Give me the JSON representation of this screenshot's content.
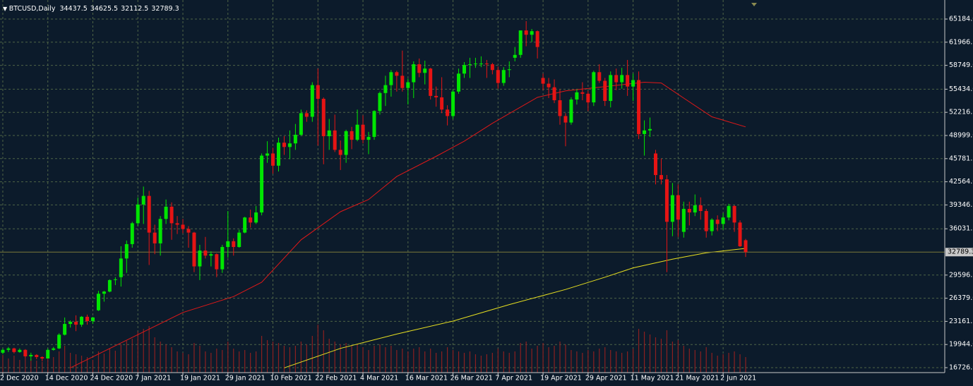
{
  "chart_data": {
    "type": "candlestick",
    "title": "BTCUSD,Daily",
    "ylim": [
      16040,
      67832
    ],
    "yticks": [
      {
        "value": 65184,
        "label": "65184.0"
      },
      {
        "value": 61966.5,
        "label": "61966.5"
      },
      {
        "value": 58749,
        "label": "58749.0"
      },
      {
        "value": 55434,
        "label": "55434.0"
      },
      {
        "value": 52216.5,
        "label": "52216.5"
      },
      {
        "value": 48999,
        "label": "48999.0"
      },
      {
        "value": 45781.5,
        "label": "45781.5"
      },
      {
        "value": 42564,
        "label": "42564.0"
      },
      {
        "value": 39346.5,
        "label": "39346.5"
      },
      {
        "value": 36031.5,
        "label": "36031.5"
      },
      {
        "value": 29596.5,
        "label": "29596.5"
      },
      {
        "value": 26379,
        "label": "26379.0"
      },
      {
        "value": 23161.5,
        "label": "23161.5"
      },
      {
        "value": 19944,
        "label": "19944.0"
      },
      {
        "value": 16726.6,
        "label": "16726.6"
      }
    ],
    "grid": true,
    "up_color": "#00e600",
    "down_color": "#e61414",
    "volume_color": "#8c2020",
    "price_line_color": "#7a7a3a",
    "categories": [
      null,
      "2 Dec 2020",
      null,
      null,
      null,
      null,
      null,
      null,
      null,
      "14 Dec 2020",
      null,
      null,
      null,
      null,
      null,
      null,
      null,
      "24 Dec 2020",
      null,
      null,
      null,
      null,
      null,
      null,
      null,
      "7 Jan 2021",
      null,
      null,
      null,
      null,
      null,
      null,
      null,
      "19 Jan 2021",
      null,
      null,
      null,
      null,
      null,
      null,
      null,
      "29 Jan 2021",
      null,
      null,
      null,
      null,
      null,
      null,
      null,
      "10 Feb 2021",
      null,
      null,
      null,
      null,
      null,
      null,
      null,
      "22 Feb 2021",
      null,
      null,
      null,
      null,
      null,
      null,
      null,
      "4 Mar 2021",
      null,
      null,
      null,
      null,
      null,
      null,
      null,
      "16 Mar 2021",
      null,
      null,
      null,
      null,
      null,
      null,
      null,
      "26 Mar 2021",
      null,
      null,
      null,
      null,
      null,
      null,
      null,
      "7 Apr 2021",
      null,
      null,
      null,
      null,
      null,
      null,
      null,
      "19 Apr 2021",
      null,
      null,
      null,
      null,
      null,
      null,
      null,
      "29 Apr 2021",
      null,
      null,
      null,
      null,
      null,
      null,
      null,
      "11 May 2021",
      null,
      null,
      null,
      null,
      null,
      null,
      null,
      "21 May 2021",
      null,
      null,
      null,
      null,
      null,
      null,
      null,
      "2 Jun 2021",
      null,
      null,
      null,
      null
    ],
    "ohlc": [
      [
        18600,
        19000,
        18300,
        18800
      ],
      [
        18800,
        19400,
        18600,
        19200
      ],
      [
        19200,
        19600,
        18900,
        19400
      ],
      [
        19400,
        19500,
        18700,
        18900
      ],
      [
        18900,
        19400,
        18800,
        19200
      ],
      [
        19200,
        19300,
        18100,
        18300
      ],
      [
        18300,
        18800,
        17700,
        18500
      ],
      [
        18500,
        18600,
        17900,
        18200
      ],
      [
        18200,
        18300,
        17600,
        18000
      ],
      [
        18000,
        19400,
        18000,
        19200
      ],
      [
        19200,
        19600,
        19100,
        19400
      ],
      [
        19400,
        21500,
        19300,
        21300
      ],
      [
        21300,
        23700,
        21200,
        22800
      ],
      [
        22800,
        23300,
        22300,
        23100
      ],
      [
        23100,
        24000,
        21800,
        22700
      ],
      [
        22700,
        23900,
        22400,
        23800
      ],
      [
        23800,
        24100,
        22700,
        23200
      ],
      [
        23200,
        23800,
        22800,
        23700
      ],
      [
        24700,
        27400,
        24600,
        27000
      ],
      [
        27000,
        27400,
        25900,
        27300
      ],
      [
        27300,
        29000,
        27200,
        28900
      ],
      [
        28900,
        29300,
        28200,
        29000
      ],
      [
        29300,
        33600,
        28000,
        31900
      ],
      [
        31900,
        34400,
        29900,
        33900
      ],
      [
        33900,
        37000,
        33400,
        36800
      ],
      [
        36800,
        40400,
        36400,
        39400
      ],
      [
        39400,
        41900,
        36700,
        40600
      ],
      [
        40600,
        41300,
        31000,
        35500
      ],
      [
        35500,
        36600,
        32500,
        34000
      ],
      [
        34000,
        37800,
        32300,
        37400
      ],
      [
        37400,
        40100,
        36700,
        39100
      ],
      [
        39100,
        39700,
        34500,
        36800
      ],
      [
        36800,
        37800,
        35300,
        36600
      ],
      [
        36600,
        37400,
        35400,
        36000
      ],
      [
        36000,
        36400,
        33400,
        35500
      ],
      [
        35500,
        35600,
        30000,
        30800
      ],
      [
        30800,
        33800,
        28900,
        33000
      ],
      [
        33000,
        34900,
        31900,
        32300
      ],
      [
        32300,
        32900,
        30800,
        32500
      ],
      [
        32500,
        32600,
        29300,
        30400
      ],
      [
        30400,
        33800,
        29900,
        33500
      ],
      [
        33500,
        38500,
        32000,
        34300
      ],
      [
        34300,
        34700,
        32300,
        33500
      ],
      [
        33500,
        35900,
        33400,
        35500
      ],
      [
        35500,
        37700,
        35400,
        37600
      ],
      [
        37600,
        38700,
        36200,
        36900
      ],
      [
        36900,
        39200,
        36700,
        38300
      ],
      [
        38300,
        46500,
        37900,
        46200
      ],
      [
        46200,
        48200,
        45200,
        46500
      ],
      [
        46500,
        47300,
        43700,
        44800
      ],
      [
        44800,
        48700,
        44000,
        48000
      ],
      [
        48000,
        48900,
        46300,
        47400
      ],
      [
        47400,
        49700,
        45700,
        47900
      ],
      [
        47900,
        50600,
        47000,
        49100
      ],
      [
        49100,
        52600,
        48900,
        52100
      ],
      [
        52100,
        52500,
        50900,
        51600
      ],
      [
        51600,
        56400,
        50900,
        56000
      ],
      [
        56000,
        58300,
        47600,
        54100
      ],
      [
        54100,
        54300,
        45000,
        48900
      ],
      [
        48900,
        51300,
        47000,
        49700
      ],
      [
        49700,
        51900,
        46700,
        47000
      ],
      [
        47000,
        48300,
        44200,
        46300
      ],
      [
        46300,
        49800,
        45200,
        49600
      ],
      [
        49600,
        50200,
        47100,
        48400
      ],
      [
        48400,
        52600,
        48200,
        50500
      ],
      [
        50500,
        51800,
        47900,
        48400
      ],
      [
        48400,
        49500,
        46400,
        48800
      ],
      [
        48800,
        52500,
        48400,
        52400
      ],
      [
        52400,
        55100,
        51900,
        54900
      ],
      [
        54900,
        57300,
        53100,
        56000
      ],
      [
        56000,
        58100,
        54400,
        57800
      ],
      [
        57800,
        58000,
        55100,
        57300
      ],
      [
        57300,
        60800,
        55100,
        55600
      ],
      [
        55600,
        56900,
        53300,
        56400
      ],
      [
        56400,
        59300,
        54200,
        58900
      ],
      [
        58900,
        59700,
        57100,
        57700
      ],
      [
        57700,
        59400,
        56100,
        58300
      ],
      [
        58300,
        58400,
        54000,
        54500
      ],
      [
        54500,
        55800,
        53000,
        54300
      ],
      [
        54300,
        57100,
        52100,
        52600
      ],
      [
        52600,
        53200,
        50400,
        51700
      ],
      [
        51700,
        55400,
        51300,
        55100
      ],
      [
        55100,
        58300,
        54800,
        57600
      ],
      [
        57600,
        59200,
        57000,
        58800
      ],
      [
        58800,
        59800,
        57000,
        58900
      ],
      [
        58900,
        59800,
        58400,
        59000
      ],
      [
        59000,
        60000,
        58500,
        59000
      ],
      [
        59000,
        59500,
        57000,
        58900
      ],
      [
        58900,
        59100,
        57500,
        58100
      ],
      [
        58100,
        58600,
        55500,
        56300
      ],
      [
        56300,
        58500,
        55900,
        58100
      ],
      [
        58100,
        59300,
        57100,
        58200
      ],
      [
        59800,
        61300,
        59300,
        60200
      ],
      [
        60200,
        63600,
        59800,
        63600
      ],
      [
        63600,
        64900,
        61400,
        63000
      ],
      [
        63000,
        63800,
        62000,
        63500
      ],
      [
        63500,
        63600,
        59700,
        61300
      ],
      [
        57000,
        57600,
        55300,
        56200
      ],
      [
        56200,
        57000,
        54200,
        55700
      ],
      [
        55700,
        56800,
        53500,
        53900
      ],
      [
        53900,
        55400,
        50500,
        51700
      ],
      [
        51700,
        52100,
        47500,
        50800
      ],
      [
        50800,
        54300,
        50500,
        54000
      ],
      [
        54000,
        55400,
        53300,
        55000
      ],
      [
        55000,
        56400,
        53900,
        54800
      ],
      [
        54800,
        55200,
        52400,
        53600
      ],
      [
        53600,
        58000,
        53100,
        57800
      ],
      [
        57800,
        58900,
        56300,
        56600
      ],
      [
        56600,
        57000,
        53100,
        53800
      ],
      [
        53800,
        57900,
        52900,
        57400
      ],
      [
        57400,
        58300,
        55300,
        56400
      ],
      [
        56400,
        58400,
        55500,
        57400
      ],
      [
        57400,
        59500,
        54500,
        55800
      ],
      [
        55800,
        57600,
        53800,
        56700
      ],
      [
        56700,
        57900,
        48500,
        49200
      ],
      [
        49200,
        51100,
        46200,
        49700
      ],
      [
        49700,
        51500,
        48800,
        49900
      ],
      [
        46500,
        47000,
        42200,
        43500
      ],
      [
        43500,
        45800,
        42200,
        42900
      ],
      [
        42900,
        43500,
        30000,
        37000
      ],
      [
        37000,
        42400,
        35000,
        40700
      ],
      [
        40700,
        42200,
        34900,
        37300
      ],
      [
        35600,
        39800,
        34800,
        38800
      ],
      [
        38800,
        39800,
        36500,
        38300
      ],
      [
        38300,
        40800,
        37800,
        39300
      ],
      [
        39300,
        40400,
        37300,
        38500
      ],
      [
        38500,
        38800,
        34800,
        35700
      ],
      [
        35700,
        37500,
        35100,
        37300
      ],
      [
        37300,
        37900,
        35700,
        36700
      ],
      [
        36700,
        38200,
        35900,
        37600
      ],
      [
        37600,
        39500,
        37200,
        39200
      ],
      [
        39200,
        39300,
        35600,
        36900
      ],
      [
        36900,
        37200,
        33500,
        33600
      ],
      [
        34437.5,
        34625.5,
        32112.5,
        32789.3
      ]
    ],
    "volume": [
      22,
      25,
      20,
      24,
      18,
      21,
      19,
      17,
      15,
      20,
      22,
      30,
      38,
      28,
      26,
      24,
      22,
      18,
      30,
      27,
      34,
      31,
      40,
      45,
      48,
      58,
      62,
      66,
      50,
      44,
      40,
      36,
      30,
      28,
      26,
      42,
      38,
      30,
      28,
      34,
      32,
      44,
      34,
      30,
      32,
      28,
      30,
      52,
      46,
      44,
      42,
      38,
      36,
      38,
      44,
      40,
      52,
      68,
      60,
      48,
      44,
      40,
      42,
      38,
      40,
      36,
      32,
      38,
      40,
      36,
      38,
      32,
      34,
      30,
      34,
      36,
      30,
      34,
      28,
      30,
      36,
      32,
      30,
      28,
      30,
      26,
      24,
      26,
      28,
      34,
      30,
      28,
      30,
      42,
      44,
      34,
      38,
      42,
      36,
      38,
      44,
      40,
      32,
      30,
      28,
      32,
      30,
      34,
      36,
      32,
      30,
      28,
      30,
      34,
      62,
      58,
      54,
      50,
      48,
      60,
      44,
      46,
      38,
      34,
      32,
      30,
      36,
      28,
      24,
      26,
      28,
      30,
      26,
      22
    ],
    "ma_lines": [
      {
        "color": "#e01818",
        "x": [
          13,
          26,
          33,
          42,
          47,
          54,
          61,
          66,
          71,
          78,
          83,
          88,
          96,
          101,
          108,
          115,
          118,
          122,
          127,
          133
        ],
        "values": [
          16700,
          21700,
          24400,
          26600,
          28600,
          34500,
          38400,
          40100,
          43300,
          46100,
          48200,
          50700,
          54300,
          55200,
          55800,
          56400,
          56300,
          54200,
          51600,
          50200
        ]
      },
      {
        "color": "#e8e020",
        "x": [
          51,
          61,
          71,
          81,
          91,
          101,
          108,
          113,
          120,
          126,
          133
        ],
        "values": [
          16700,
          19400,
          21400,
          23200,
          25500,
          27600,
          29300,
          30600,
          31800,
          32700,
          33300
        ]
      }
    ]
  }
}
